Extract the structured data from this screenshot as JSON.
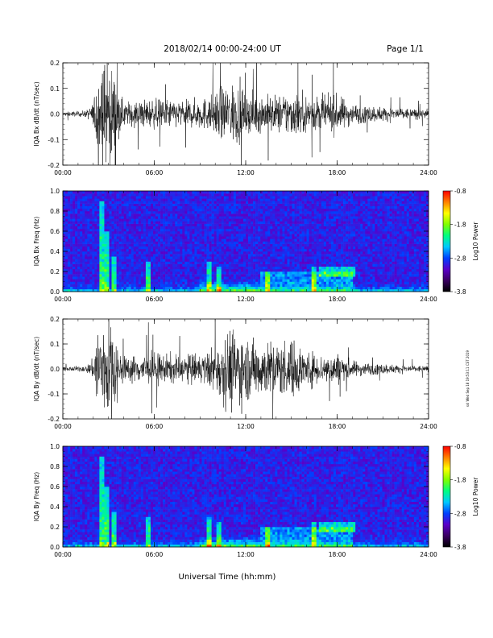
{
  "header": {
    "title": "2018/02/14   00:00-24:00 UT",
    "page": "Page 1/1"
  },
  "xlabel": "Universal Time (hh:mm)",
  "stamp": "ssl Wed Sep 18 19:53:11 CST 2019",
  "chart_data": [
    {
      "type": "line",
      "ylabel": "IQA Bx dB/dt (nT/sec)",
      "x_ticks": [
        "00:00",
        "06:00",
        "12:00",
        "18:00",
        "24:00"
      ],
      "xlim_hours": [
        0,
        24
      ],
      "ylim": [
        -0.2,
        0.2
      ],
      "y_ticks": [
        "-0.2",
        "-0.1",
        "0.0",
        "0.1",
        "0.2"
      ],
      "grid": false,
      "amplitude_envelope": {
        "hours": [
          0,
          1.5,
          2.0,
          2.3,
          2.6,
          3.0,
          3.4,
          3.7,
          4.2,
          5.5,
          6.0,
          7.0,
          8.0,
          9.5,
          10.0,
          10.8,
          11.5,
          12.0,
          13.0,
          14.0,
          15.0,
          16.0,
          17.0,
          18.0,
          19.0,
          20.0,
          22.0,
          24.0
        ],
        "values": [
          0.01,
          0.015,
          0.05,
          0.25,
          0.25,
          0.25,
          0.2,
          0.08,
          0.06,
          0.07,
          0.07,
          0.07,
          0.06,
          0.08,
          0.1,
          0.15,
          0.14,
          0.1,
          0.09,
          0.09,
          0.11,
          0.09,
          0.08,
          0.09,
          0.05,
          0.04,
          0.03,
          0.02
        ]
      }
    },
    {
      "type": "heatmap",
      "ylabel": "IQA Bx Freq (Hz)",
      "x_ticks": [
        "00:00",
        "06:00",
        "12:00",
        "18:00",
        "24:00"
      ],
      "xlim_hours": [
        0,
        24
      ],
      "ylim": [
        0,
        1.0
      ],
      "y_ticks": [
        "0.0",
        "0.2",
        "0.4",
        "0.6",
        "0.8",
        "1.0"
      ],
      "colorbar": {
        "label": "Log10 Power",
        "range": [
          -3.8,
          -0.8
        ],
        "ticks": [
          "-0.8",
          "-1.8",
          "-2.8",
          "-3.8"
        ],
        "colors": [
          "#000000",
          "#3a0060",
          "#5a00c8",
          "#0040ff",
          "#00c8ff",
          "#00ff80",
          "#80ff00",
          "#ffff00",
          "#ff8000",
          "#ff0000"
        ]
      }
    },
    {
      "type": "line",
      "ylabel": "IQA By dB/dt (nT/sec)",
      "x_ticks": [
        "00:00",
        "06:00",
        "12:00",
        "18:00",
        "24:00"
      ],
      "xlim_hours": [
        0,
        24
      ],
      "ylim": [
        -0.2,
        0.2
      ],
      "y_ticks": [
        "-0.2",
        "-0.1",
        "0.0",
        "0.1",
        "0.2"
      ],
      "grid": false,
      "amplitude_envelope": {
        "hours": [
          0,
          1.5,
          2.0,
          2.3,
          2.6,
          3.0,
          3.4,
          3.7,
          4.2,
          5.5,
          6.0,
          7.0,
          8.0,
          9.5,
          10.0,
          10.8,
          11.5,
          12.0,
          13.0,
          14.0,
          15.0,
          16.0,
          17.0,
          18.0,
          19.0,
          20.0,
          22.0,
          24.0
        ],
        "values": [
          0.01,
          0.015,
          0.05,
          0.25,
          0.25,
          0.25,
          0.22,
          0.08,
          0.06,
          0.08,
          0.08,
          0.07,
          0.07,
          0.08,
          0.12,
          0.2,
          0.2,
          0.15,
          0.14,
          0.13,
          0.15,
          0.09,
          0.07,
          0.08,
          0.04,
          0.03,
          0.02,
          0.015
        ]
      }
    },
    {
      "type": "heatmap",
      "ylabel": "IQA By Freq (Hz)",
      "x_ticks": [
        "00:00",
        "06:00",
        "12:00",
        "18:00",
        "24:00"
      ],
      "xlim_hours": [
        0,
        24
      ],
      "ylim": [
        0,
        1.0
      ],
      "y_ticks": [
        "0.0",
        "0.2",
        "0.4",
        "0.6",
        "0.8",
        "1.0"
      ],
      "colorbar": {
        "label": "Log10 Power",
        "range": [
          -3.8,
          -0.8
        ],
        "ticks": [
          "-0.8",
          "-1.8",
          "-2.8",
          "-3.8"
        ],
        "colors": [
          "#000000",
          "#3a0060",
          "#5a00c8",
          "#0040ff",
          "#00c8ff",
          "#00ff80",
          "#80ff00",
          "#ffff00",
          "#ff8000",
          "#ff0000"
        ]
      }
    }
  ]
}
